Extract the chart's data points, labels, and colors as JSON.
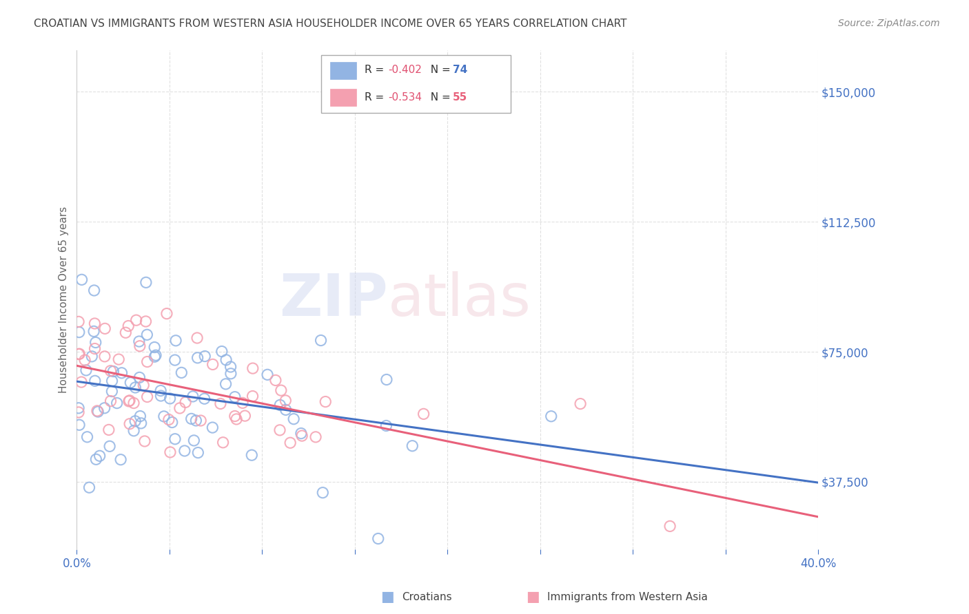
{
  "title": "CROATIAN VS IMMIGRANTS FROM WESTERN ASIA HOUSEHOLDER INCOME OVER 65 YEARS CORRELATION CHART",
  "source": "Source: ZipAtlas.com",
  "ylabel": "Householder Income Over 65 years",
  "xlim": [
    0.0,
    0.4
  ],
  "ylim": [
    18000,
    162000
  ],
  "yticks": [
    37500,
    75000,
    112500,
    150000
  ],
  "xticks": [
    0.0,
    0.05,
    0.1,
    0.15,
    0.2,
    0.25,
    0.3,
    0.35,
    0.4
  ],
  "series": [
    {
      "label": "Croatians",
      "R": -0.402,
      "N": 74,
      "color": "#92b4e3",
      "trend_color": "#4472c4"
    },
    {
      "label": "Immigrants from Western Asia",
      "R": -0.534,
      "N": 55,
      "color": "#f4a0b0",
      "trend_color": "#e8607a"
    }
  ],
  "watermark_zip": "ZIP",
  "watermark_atlas": "atlas",
  "background_color": "#ffffff",
  "grid_color": "#cccccc",
  "axis_color": "#4472c4",
  "title_color": "#444444",
  "source_color": "#888888",
  "ylabel_color": "#666666"
}
